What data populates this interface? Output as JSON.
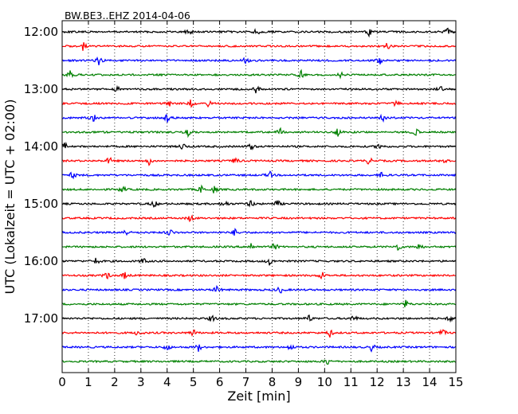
{
  "chart_data": {
    "type": "line",
    "title": "BW.BE3..EHZ 2014-04-06",
    "xlabel": "Zeit  [min]",
    "ylabel": "UTC (Lokalzeit = UTC + 02:00)",
    "xlim": [
      0,
      15
    ],
    "x_ticks": [
      "0",
      "1",
      "2",
      "3",
      "4",
      "5",
      "6",
      "7",
      "8",
      "9",
      "10",
      "11",
      "12",
      "13",
      "14",
      "15"
    ],
    "y_ticks": [
      "12:00",
      "13:00",
      "14:00",
      "15:00",
      "16:00",
      "17:00"
    ],
    "grid": "vertical dotted",
    "trace_colors": [
      "#000000",
      "#ff0000",
      "#0000ff",
      "#008000"
    ],
    "traces": [
      {
        "start": "12:00",
        "color": "#000000",
        "events": [
          4.8,
          7.4,
          11.7,
          14.7
        ]
      },
      {
        "start": "12:15",
        "color": "#ff0000",
        "events": [
          0.8,
          12.4
        ]
      },
      {
        "start": "12:30",
        "color": "#0000ff",
        "events": [
          1.4,
          7.0,
          12.1
        ]
      },
      {
        "start": "12:45",
        "color": "#008000",
        "events": [
          0.3,
          9.1,
          10.6
        ]
      },
      {
        "start": "13:00",
        "color": "#000000",
        "events": [
          2.1,
          7.4,
          14.4
        ]
      },
      {
        "start": "13:15",
        "color": "#ff0000",
        "events": [
          4.1,
          4.9,
          5.6,
          12.7
        ]
      },
      {
        "start": "13:30",
        "color": "#0000ff",
        "events": [
          1.2,
          4.0,
          12.2
        ]
      },
      {
        "start": "13:45",
        "color": "#008000",
        "events": [
          4.8,
          8.3,
          10.5,
          13.5
        ]
      },
      {
        "start": "14:00",
        "color": "#000000",
        "events": [
          0.1,
          4.6,
          7.2,
          12.1
        ]
      },
      {
        "start": "14:15",
        "color": "#ff0000",
        "events": [
          1.8,
          3.3,
          6.6,
          11.7,
          14.6
        ]
      },
      {
        "start": "14:30",
        "color": "#0000ff",
        "events": [
          0.4,
          7.9,
          12.2
        ]
      },
      {
        "start": "14:45",
        "color": "#008000",
        "events": [
          2.3,
          5.3,
          5.8
        ]
      },
      {
        "start": "15:00",
        "color": "#000000",
        "events": [
          3.5,
          6.2,
          7.2,
          8.2
        ]
      },
      {
        "start": "15:15",
        "color": "#ff0000",
        "events": [
          4.9
        ]
      },
      {
        "start": "15:30",
        "color": "#0000ff",
        "events": [
          2.4,
          4.1,
          6.6
        ]
      },
      {
        "start": "15:45",
        "color": "#008000",
        "events": [
          7.2,
          8.1,
          12.8,
          13.6
        ]
      },
      {
        "start": "16:00",
        "color": "#000000",
        "events": [
          1.3,
          3.1,
          7.9
        ]
      },
      {
        "start": "16:15",
        "color": "#ff0000",
        "events": [
          1.7,
          2.4,
          9.9
        ]
      },
      {
        "start": "16:30",
        "color": "#0000ff",
        "events": [
          5.9,
          8.3
        ]
      },
      {
        "start": "16:45",
        "color": "#008000",
        "events": [
          13.1
        ]
      },
      {
        "start": "17:00",
        "color": "#000000",
        "events": [
          5.7,
          9.4,
          11.1,
          14.8
        ]
      },
      {
        "start": "17:15",
        "color": "#ff0000",
        "events": [
          2.9,
          5.0,
          10.2,
          14.5
        ]
      },
      {
        "start": "17:30",
        "color": "#0000ff",
        "events": [
          4.0,
          5.2,
          8.7,
          11.8
        ]
      },
      {
        "start": "17:45",
        "color": "#008000",
        "events": [
          10.1
        ]
      }
    ]
  }
}
